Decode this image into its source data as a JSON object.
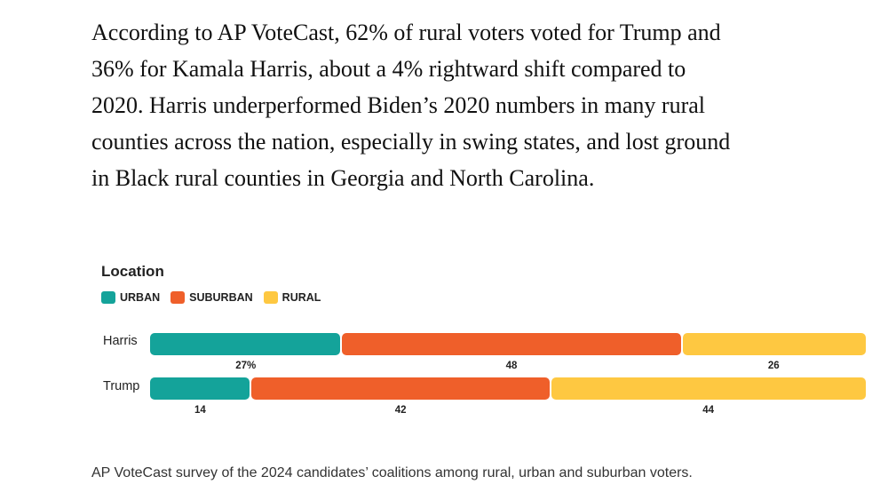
{
  "article": {
    "paragraph": "According to AP VoteCast, 62% of rural voters voted for Trump and 36% for Kamala Harris, about a 4% rightward shift compared to 2020. Harris underperformed Biden’s 2020 numbers in many rural counties across the nation, especially in swing states, and lost ground in Black rural counties in Georgia and North Carolina."
  },
  "chart_data": {
    "type": "bar",
    "stacked": true,
    "orientation": "horizontal",
    "title": "Location",
    "categories": [
      "Harris",
      "Trump"
    ],
    "series": [
      {
        "name": "URBAN",
        "color": "#14a39a",
        "values": [
          27,
          14
        ],
        "labels": [
          "27%",
          "14"
        ]
      },
      {
        "name": "SUBURBAN",
        "color": "#ef5f2a",
        "values": [
          48,
          42
        ],
        "labels": [
          "48",
          "42"
        ]
      },
      {
        "name": "RURAL",
        "color": "#fec841",
        "values": [
          26,
          44
        ],
        "labels": [
          "26",
          "44"
        ]
      }
    ],
    "xlim": [
      0,
      100
    ]
  },
  "caption": "AP VoteCast survey of the 2024 candidates’ coalitions among rural, urban and suburban voters."
}
